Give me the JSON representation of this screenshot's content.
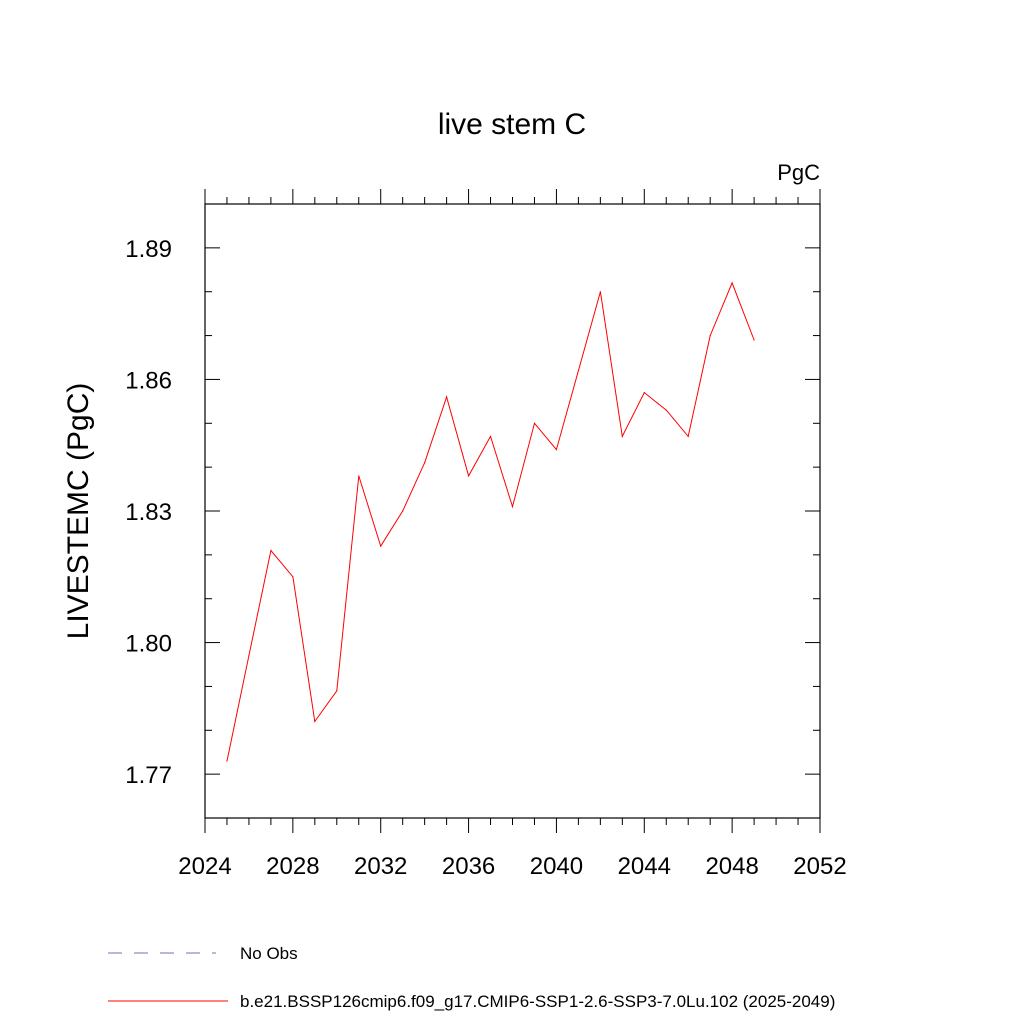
{
  "chart_data": {
    "type": "line",
    "title": "live stem C",
    "units": "PgC",
    "ylabel": "LIVESTEMC  (PgC)",
    "xlabel": "",
    "xlim": [
      2024,
      2052
    ],
    "ylim": [
      1.76,
      1.9
    ],
    "x_ticks": [
      "2024",
      "2028",
      "2032",
      "2036",
      "2040",
      "2044",
      "2048",
      "2052"
    ],
    "x_tick_values": [
      2024,
      2028,
      2032,
      2036,
      2040,
      2044,
      2048,
      2052
    ],
    "y_ticks": [
      "1.77",
      "1.80",
      "1.83",
      "1.86",
      "1.89"
    ],
    "y_tick_values": [
      1.77,
      1.8,
      1.83,
      1.86,
      1.89
    ],
    "grid": false,
    "legend_placement": "bottom",
    "series": [
      {
        "name": "b.e21.BSSP126cmip6.f09_g17.CMIP6-SSP1-2.6-SSP3-7.0Lu.102 (2025-2049)",
        "color": "#ff0000",
        "x": [
          2025,
          2026,
          2027,
          2028,
          2029,
          2030,
          2031,
          2032,
          2033,
          2034,
          2035,
          2036,
          2037,
          2038,
          2039,
          2040,
          2041,
          2042,
          2043,
          2044,
          2045,
          2046,
          2047,
          2048,
          2049
        ],
        "values": [
          1.773,
          1.797,
          1.821,
          1.815,
          1.782,
          1.789,
          1.838,
          1.822,
          1.83,
          1.841,
          1.856,
          1.838,
          1.847,
          1.831,
          1.85,
          1.844,
          1.862,
          1.88,
          1.847,
          1.857,
          1.853,
          1.847,
          1.87,
          1.882,
          1.869
        ]
      }
    ],
    "legend": [
      {
        "label": "No Obs",
        "style": "dashed",
        "color": "#7a6fb0"
      },
      {
        "label": "b.e21.BSSP126cmip6.f09_g17.CMIP6-SSP1-2.6-SSP3-7.0Lu.102 (2025-2049)",
        "style": "solid",
        "color": "#ff0000"
      }
    ]
  }
}
